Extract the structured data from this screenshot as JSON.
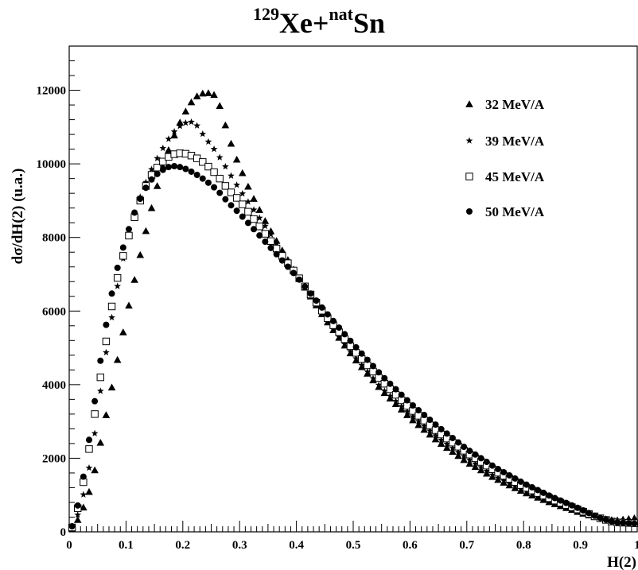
{
  "title": {
    "iso1_mass": "129",
    "iso1_symbol": "Xe+",
    "iso2_mass": "nat",
    "iso2_symbol": "Sn"
  },
  "chart_data": {
    "type": "scatter",
    "title": "129Xe+natSn",
    "xlabel": "H(2)",
    "ylabel": "dσ/dH(2) (u.a.)",
    "xlim": [
      0,
      1
    ],
    "ylim": [
      0,
      13200
    ],
    "x_ticks": [
      "0",
      "0.1",
      "0.2",
      "0.3",
      "0.4",
      "0.5",
      "0.6",
      "0.7",
      "0.8",
      "0.9",
      "1"
    ],
    "y_ticks": [
      "0",
      "2000",
      "4000",
      "6000",
      "8000",
      "10000",
      "12000"
    ],
    "grid": false,
    "legend_position": "top-right",
    "series": [
      {
        "name": "32 MeV/A",
        "marker": "triangle",
        "knots": [
          [
            0.005,
            80
          ],
          [
            0.02,
            450
          ],
          [
            0.04,
            1300
          ],
          [
            0.06,
            2800
          ],
          [
            0.08,
            4300
          ],
          [
            0.1,
            5800
          ],
          [
            0.12,
            7200
          ],
          [
            0.14,
            8500
          ],
          [
            0.16,
            9700
          ],
          [
            0.18,
            10600
          ],
          [
            0.2,
            11300
          ],
          [
            0.22,
            11800
          ],
          [
            0.24,
            11950
          ],
          [
            0.26,
            11850
          ],
          [
            0.27,
            11300
          ],
          [
            0.29,
            10300
          ],
          [
            0.32,
            9200
          ],
          [
            0.35,
            8300
          ],
          [
            0.4,
            7000
          ],
          [
            0.45,
            5800
          ],
          [
            0.5,
            4750
          ],
          [
            0.55,
            3850
          ],
          [
            0.6,
            3100
          ],
          [
            0.65,
            2450
          ],
          [
            0.7,
            1900
          ],
          [
            0.75,
            1450
          ],
          [
            0.8,
            1080
          ],
          [
            0.85,
            780
          ],
          [
            0.9,
            520
          ],
          [
            0.93,
            380
          ],
          [
            0.96,
            310
          ],
          [
            1.0,
            380
          ]
        ]
      },
      {
        "name": "39 MeV/A",
        "marker": "star",
        "knots": [
          [
            0.005,
            80
          ],
          [
            0.02,
            650
          ],
          [
            0.04,
            2100
          ],
          [
            0.06,
            4400
          ],
          [
            0.08,
            6300
          ],
          [
            0.1,
            7800
          ],
          [
            0.12,
            8900
          ],
          [
            0.14,
            9700
          ],
          [
            0.16,
            10300
          ],
          [
            0.18,
            10800
          ],
          [
            0.2,
            11100
          ],
          [
            0.22,
            11150
          ],
          [
            0.24,
            10700
          ],
          [
            0.26,
            10300
          ],
          [
            0.3,
            9300
          ],
          [
            0.35,
            8200
          ],
          [
            0.4,
            7000
          ],
          [
            0.45,
            5800
          ],
          [
            0.5,
            4800
          ],
          [
            0.55,
            3900
          ],
          [
            0.6,
            3200
          ],
          [
            0.65,
            2550
          ],
          [
            0.7,
            2000
          ],
          [
            0.75,
            1500
          ],
          [
            0.8,
            1130
          ],
          [
            0.85,
            810
          ],
          [
            0.9,
            540
          ],
          [
            0.93,
            380
          ],
          [
            0.96,
            290
          ],
          [
            1.0,
            300
          ]
        ]
      },
      {
        "name": "45 MeV/A",
        "marker": "open-square",
        "knots": [
          [
            0.005,
            120
          ],
          [
            0.02,
            900
          ],
          [
            0.04,
            2700
          ],
          [
            0.06,
            4700
          ],
          [
            0.08,
            6600
          ],
          [
            0.1,
            7800
          ],
          [
            0.12,
            8800
          ],
          [
            0.14,
            9600
          ],
          [
            0.16,
            10000
          ],
          [
            0.18,
            10250
          ],
          [
            0.2,
            10300
          ],
          [
            0.22,
            10200
          ],
          [
            0.24,
            10000
          ],
          [
            0.26,
            9700
          ],
          [
            0.28,
            9300
          ],
          [
            0.3,
            9000
          ],
          [
            0.35,
            8000
          ],
          [
            0.4,
            7000
          ],
          [
            0.45,
            5900
          ],
          [
            0.5,
            4950
          ],
          [
            0.55,
            4100
          ],
          [
            0.6,
            3350
          ],
          [
            0.65,
            2700
          ],
          [
            0.7,
            2150
          ],
          [
            0.75,
            1650
          ],
          [
            0.8,
            1230
          ],
          [
            0.85,
            880
          ],
          [
            0.9,
            580
          ],
          [
            0.93,
            390
          ],
          [
            0.96,
            260
          ],
          [
            1.0,
            230
          ]
        ]
      },
      {
        "name": "50 MeV/A",
        "marker": "filled-circle",
        "knots": [
          [
            0.005,
            150
          ],
          [
            0.02,
            1000
          ],
          [
            0.04,
            3000
          ],
          [
            0.06,
            5200
          ],
          [
            0.08,
            6900
          ],
          [
            0.1,
            8000
          ],
          [
            0.12,
            8900
          ],
          [
            0.14,
            9500
          ],
          [
            0.16,
            9800
          ],
          [
            0.18,
            9950
          ],
          [
            0.2,
            9900
          ],
          [
            0.22,
            9750
          ],
          [
            0.24,
            9550
          ],
          [
            0.26,
            9300
          ],
          [
            0.28,
            8950
          ],
          [
            0.3,
            8650
          ],
          [
            0.35,
            7800
          ],
          [
            0.4,
            6950
          ],
          [
            0.45,
            6000
          ],
          [
            0.5,
            5100
          ],
          [
            0.55,
            4250
          ],
          [
            0.6,
            3500
          ],
          [
            0.65,
            2850
          ],
          [
            0.7,
            2250
          ],
          [
            0.75,
            1750
          ],
          [
            0.8,
            1320
          ],
          [
            0.85,
            950
          ],
          [
            0.9,
            620
          ],
          [
            0.93,
            400
          ],
          [
            0.96,
            260
          ],
          [
            1.0,
            220
          ]
        ]
      }
    ]
  }
}
